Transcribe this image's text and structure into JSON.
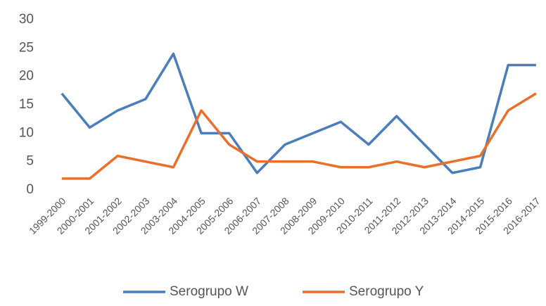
{
  "chart_data": {
    "type": "line",
    "categories": [
      "1999-2000",
      "2000-2001",
      "2001-2002",
      "2002-2003",
      "2003-2004",
      "2004-2005",
      "2005-2006",
      "2006-2007",
      "2007-2008",
      "2008-2009",
      "2009-2010",
      "2010-2011",
      "2011-2012",
      "2012-2013",
      "2013-2014",
      "2014-2015",
      "2015-2016",
      "2016-2017"
    ],
    "series": [
      {
        "name": "Serogrupo W",
        "color": "#4a7ebb",
        "values": [
          17,
          11,
          14,
          16,
          24,
          10,
          10,
          3,
          8,
          10,
          12,
          8,
          13,
          8,
          3,
          4,
          22,
          22
        ]
      },
      {
        "name": "Serogrupo Y",
        "color": "#e8702a",
        "values": [
          2,
          2,
          6,
          5,
          4,
          14,
          8,
          5,
          5,
          5,
          4,
          4,
          5,
          4,
          5,
          6,
          14,
          17
        ]
      }
    ],
    "ylim": [
      0,
      30
    ],
    "yticks": [
      0,
      5,
      10,
      15,
      20,
      25,
      30
    ]
  }
}
